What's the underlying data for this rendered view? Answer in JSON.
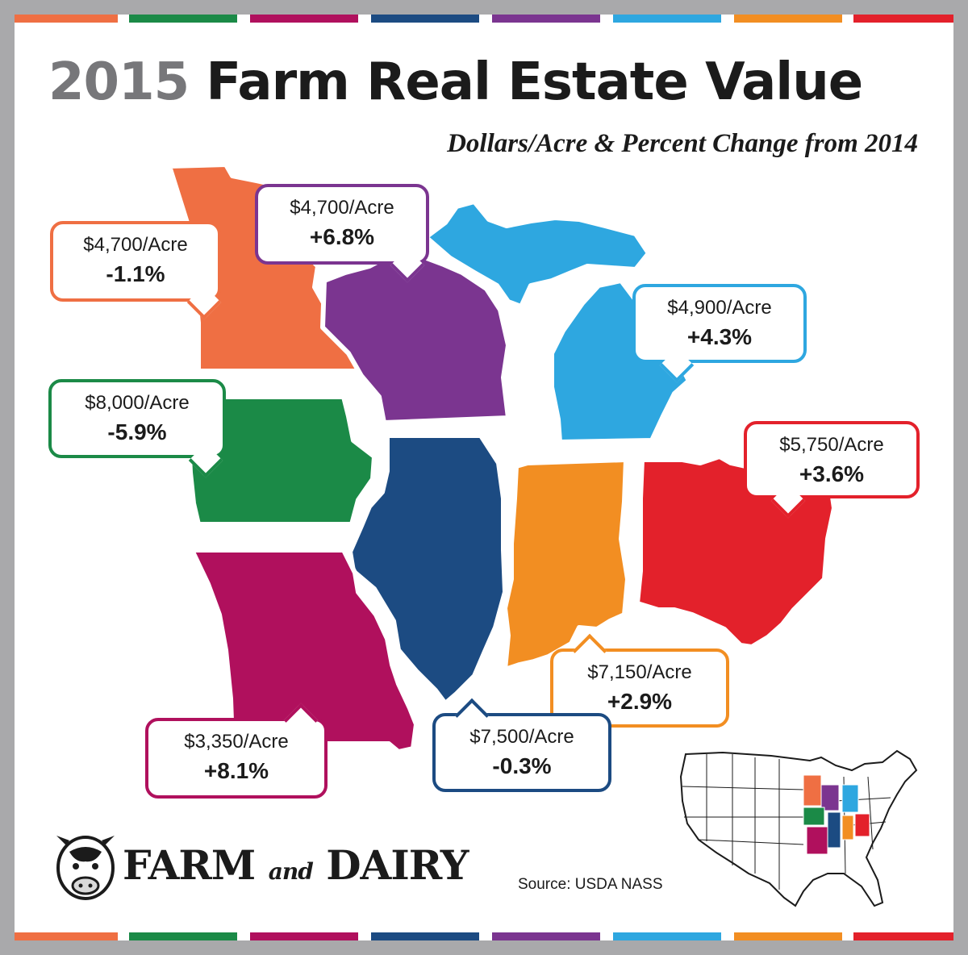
{
  "title": {
    "year": "2015",
    "rest": "Farm Real Estate Value"
  },
  "subtitle": "Dollars/Acre & Percent Change from 2014",
  "stripe_colors": [
    "#ef6f43",
    "#1b8a47",
    "#b0105d",
    "#1c4b82",
    "#7b3590",
    "#2ea7e0",
    "#f28e22",
    "#e3212b"
  ],
  "states": {
    "minnesota": {
      "color": "#ef6f43",
      "price": "$4,700/Acre",
      "change": "-1.1%"
    },
    "wisconsin": {
      "color": "#7b3590",
      "price": "$4,700/Acre",
      "change": "+6.8%"
    },
    "michigan": {
      "color": "#2ea7e0",
      "price": "$4,900/Acre",
      "change": "+4.3%"
    },
    "iowa": {
      "color": "#1b8a47",
      "price": "$8,000/Acre",
      "change": "-5.9%"
    },
    "illinois": {
      "color": "#1c4b82",
      "price": "$7,500/Acre",
      "change": "-0.3%"
    },
    "indiana": {
      "color": "#f28e22",
      "price": "$7,150/Acre",
      "change": "+2.9%"
    },
    "ohio": {
      "color": "#e3212b",
      "price": "$5,750/Acre",
      "change": "+3.6%"
    },
    "missouri": {
      "color": "#b0105d",
      "price": "$3,350/Acre",
      "change": "+8.1%"
    }
  },
  "logo": {
    "word1": "FARM",
    "word2": "and",
    "word3": "DAIRY",
    "icon": "cow-head-icon"
  },
  "source": "Source: USDA NASS"
}
